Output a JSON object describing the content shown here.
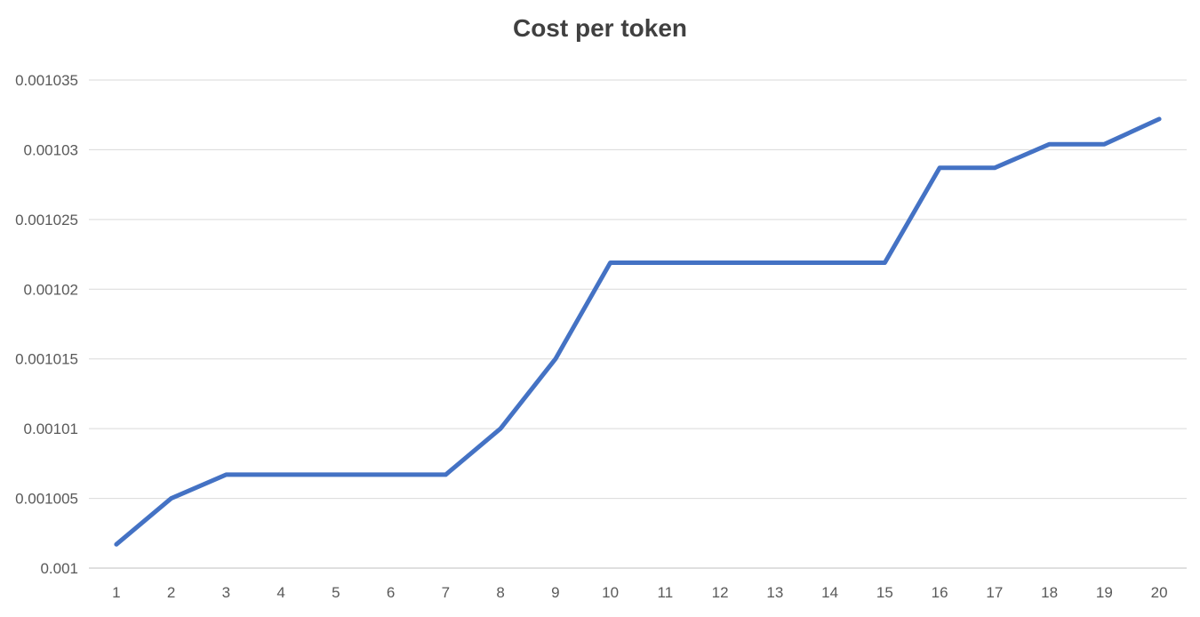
{
  "chart_data": {
    "type": "line",
    "title": "Cost per token",
    "xlabel": "",
    "ylabel": "",
    "categories": [
      "1",
      "2",
      "3",
      "4",
      "5",
      "6",
      "7",
      "8",
      "9",
      "10",
      "11",
      "12",
      "13",
      "14",
      "15",
      "16",
      "17",
      "18",
      "19",
      "20"
    ],
    "series": [
      {
        "values": [
          0.0010017,
          0.001005,
          0.0010067,
          0.0010067,
          0.0010067,
          0.0010067,
          0.0010067,
          0.00101,
          0.001015,
          0.0010219,
          0.0010219,
          0.0010219,
          0.0010219,
          0.0010219,
          0.0010219,
          0.0010287,
          0.0010287,
          0.0010304,
          0.0010304,
          0.0010322
        ],
        "color": "#4472C4"
      }
    ],
    "ylim": [
      0.001,
      0.001035
    ],
    "yticks": [
      "0.001",
      "0.001005",
      "0.00101",
      "0.001015",
      "0.00102",
      "0.001025",
      "0.00103",
      "0.001035"
    ],
    "grid": true,
    "legend": "none"
  },
  "colors": {
    "line": "#4472C4",
    "grid": "#D9D9D9",
    "axis": "#BFBFBF",
    "text": "#595959",
    "title": "#404040"
  }
}
